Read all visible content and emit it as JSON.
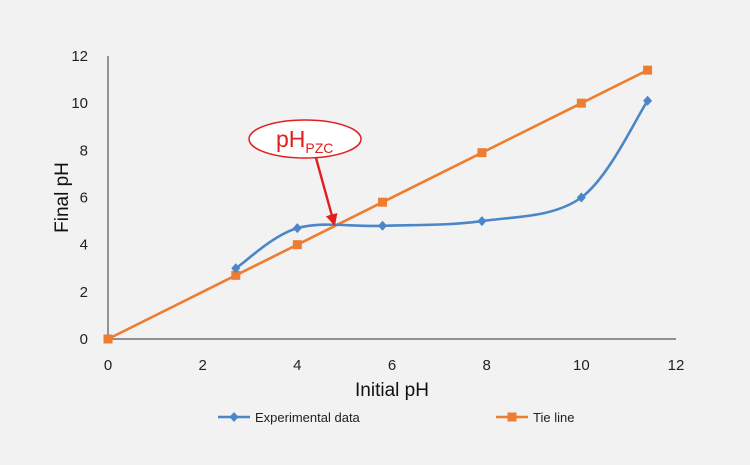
{
  "chart_data": {
    "type": "line",
    "title": "",
    "xlabel": "Initial pH",
    "ylabel": "Final pH",
    "xlim": [
      0,
      12
    ],
    "ylim": [
      0,
      12
    ],
    "xticks": [
      0,
      2,
      4,
      6,
      8,
      10,
      12
    ],
    "yticks": [
      0,
      2,
      4,
      6,
      8,
      10,
      12
    ],
    "grid": false,
    "legend_position": "bottom",
    "series": [
      {
        "name": "Experimental data",
        "color": "#4a86c8",
        "marker": "diamond",
        "smooth": true,
        "x": [
          2.7,
          4.0,
          5.8,
          7.9,
          10.0,
          11.4
        ],
        "y": [
          3.0,
          4.7,
          4.8,
          5.0,
          6.0,
          10.1
        ]
      },
      {
        "name": "Tie line",
        "color": "#ed7d31",
        "marker": "square",
        "smooth": false,
        "x": [
          0,
          2.7,
          4.0,
          5.8,
          7.9,
          10.0,
          11.4
        ],
        "y": [
          0,
          2.7,
          4.0,
          5.8,
          7.9,
          10.0,
          11.4
        ]
      }
    ],
    "annotation": {
      "text_main": "pH",
      "text_sub": "PZC",
      "color": "#e02020",
      "arrow_target": {
        "x": 4.8,
        "y": 4.8
      }
    }
  }
}
